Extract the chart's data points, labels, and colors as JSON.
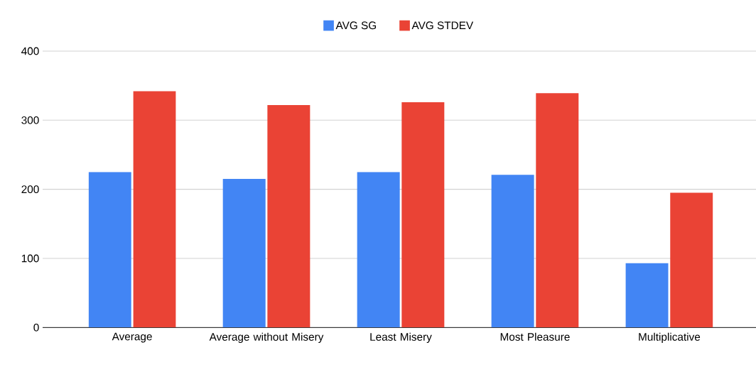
{
  "chart_data": {
    "type": "bar",
    "categories": [
      "Average",
      "Average without Misery",
      "Least Misery",
      "Most Pleasure",
      "Multiplicative"
    ],
    "series": [
      {
        "name": "AVG SG",
        "color": "#4285f4",
        "values": [
          225,
          215,
          225,
          221,
          93
        ]
      },
      {
        "name": "AVG STDEV",
        "color": "#ea4335",
        "values": [
          342,
          322,
          326,
          339,
          195
        ]
      }
    ],
    "ylim": [
      0,
      400
    ],
    "yticks": [
      0,
      100,
      200,
      300,
      400
    ],
    "grid": "y",
    "legend": "top"
  }
}
